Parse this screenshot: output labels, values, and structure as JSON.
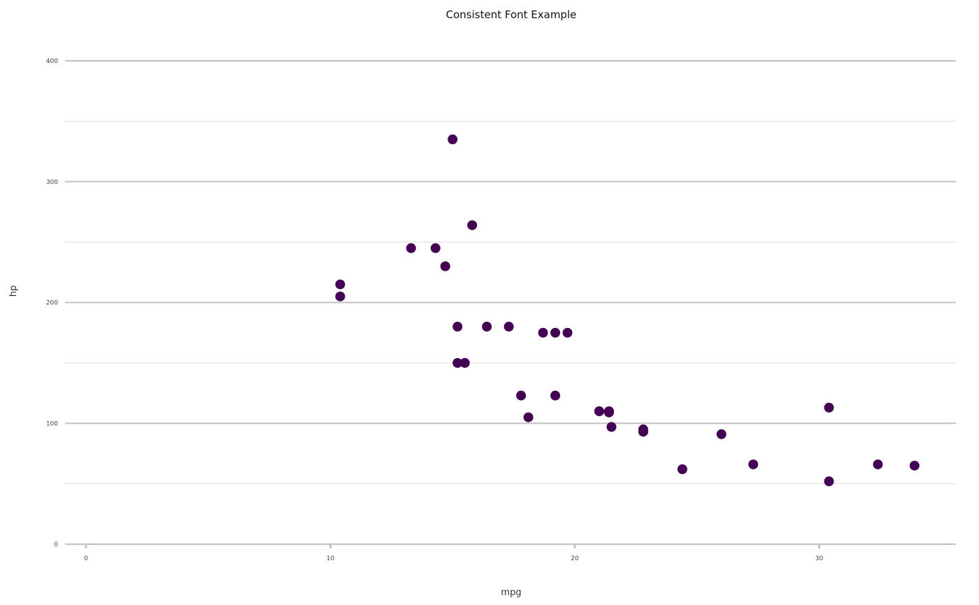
{
  "chart_data": {
    "type": "scatter",
    "title": "Consistent Font Example",
    "xlabel": "mpg",
    "ylabel": "hp",
    "xlim": [
      0,
      35
    ],
    "ylim": [
      0,
      400
    ],
    "x_ticks": [
      0,
      10,
      20,
      30
    ],
    "y_ticks": [
      0,
      100,
      200,
      300,
      400
    ],
    "grid": true,
    "legend": "none",
    "point_color": "#440154",
    "points": [
      {
        "x": 21.0,
        "y": 110
      },
      {
        "x": 21.0,
        "y": 110
      },
      {
        "x": 22.8,
        "y": 93
      },
      {
        "x": 21.4,
        "y": 110
      },
      {
        "x": 18.7,
        "y": 175
      },
      {
        "x": 18.1,
        "y": 105
      },
      {
        "x": 14.3,
        "y": 245
      },
      {
        "x": 24.4,
        "y": 62
      },
      {
        "x": 22.8,
        "y": 95
      },
      {
        "x": 19.2,
        "y": 123
      },
      {
        "x": 17.8,
        "y": 123
      },
      {
        "x": 16.4,
        "y": 180
      },
      {
        "x": 17.3,
        "y": 180
      },
      {
        "x": 15.2,
        "y": 180
      },
      {
        "x": 10.4,
        "y": 205
      },
      {
        "x": 10.4,
        "y": 215
      },
      {
        "x": 14.7,
        "y": 230
      },
      {
        "x": 32.4,
        "y": 66
      },
      {
        "x": 30.4,
        "y": 52
      },
      {
        "x": 33.9,
        "y": 65
      },
      {
        "x": 21.5,
        "y": 97
      },
      {
        "x": 15.5,
        "y": 150
      },
      {
        "x": 15.2,
        "y": 150
      },
      {
        "x": 13.3,
        "y": 245
      },
      {
        "x": 19.2,
        "y": 175
      },
      {
        "x": 27.3,
        "y": 66
      },
      {
        "x": 26.0,
        "y": 91
      },
      {
        "x": 30.4,
        "y": 113
      },
      {
        "x": 15.8,
        "y": 264
      },
      {
        "x": 19.7,
        "y": 175
      },
      {
        "x": 15.0,
        "y": 335
      },
      {
        "x": 21.4,
        "y": 109
      }
    ]
  }
}
